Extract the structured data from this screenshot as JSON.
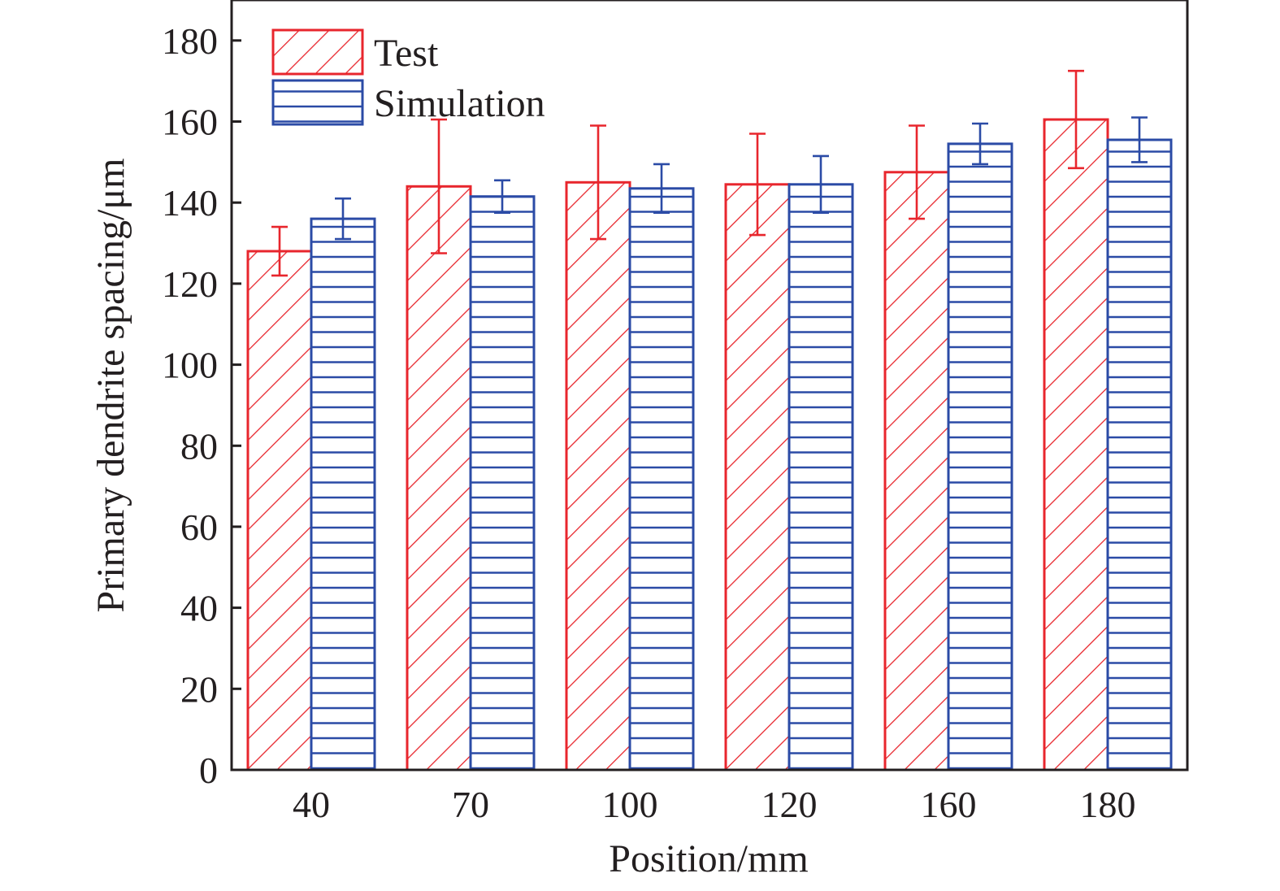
{
  "chart_data": {
    "type": "bar",
    "title": "",
    "xlabel": "Position/mm",
    "ylabel": "Primary dendrite spacing/μm",
    "categories": [
      "40",
      "70",
      "100",
      "120",
      "160",
      "180"
    ],
    "ylim": [
      0,
      190
    ],
    "yticks": [
      0,
      20,
      40,
      60,
      80,
      100,
      120,
      140,
      160,
      180
    ],
    "grid": false,
    "legend_position": "top-left",
    "series": [
      {
        "name": "Test",
        "color": "#e8262d",
        "pattern": "diagonal-hatch",
        "values": [
          128,
          144,
          145,
          144.5,
          147.5,
          160.5
        ],
        "errors": [
          6,
          16.5,
          14,
          12.5,
          11.5,
          12
        ]
      },
      {
        "name": "Simulation",
        "color": "#2b4ba6",
        "pattern": "horizontal-hatch",
        "values": [
          136,
          141.5,
          143.5,
          144.5,
          154.5,
          155.5
        ],
        "errors": [
          5,
          4,
          6,
          7,
          5,
          5.5
        ]
      }
    ]
  }
}
